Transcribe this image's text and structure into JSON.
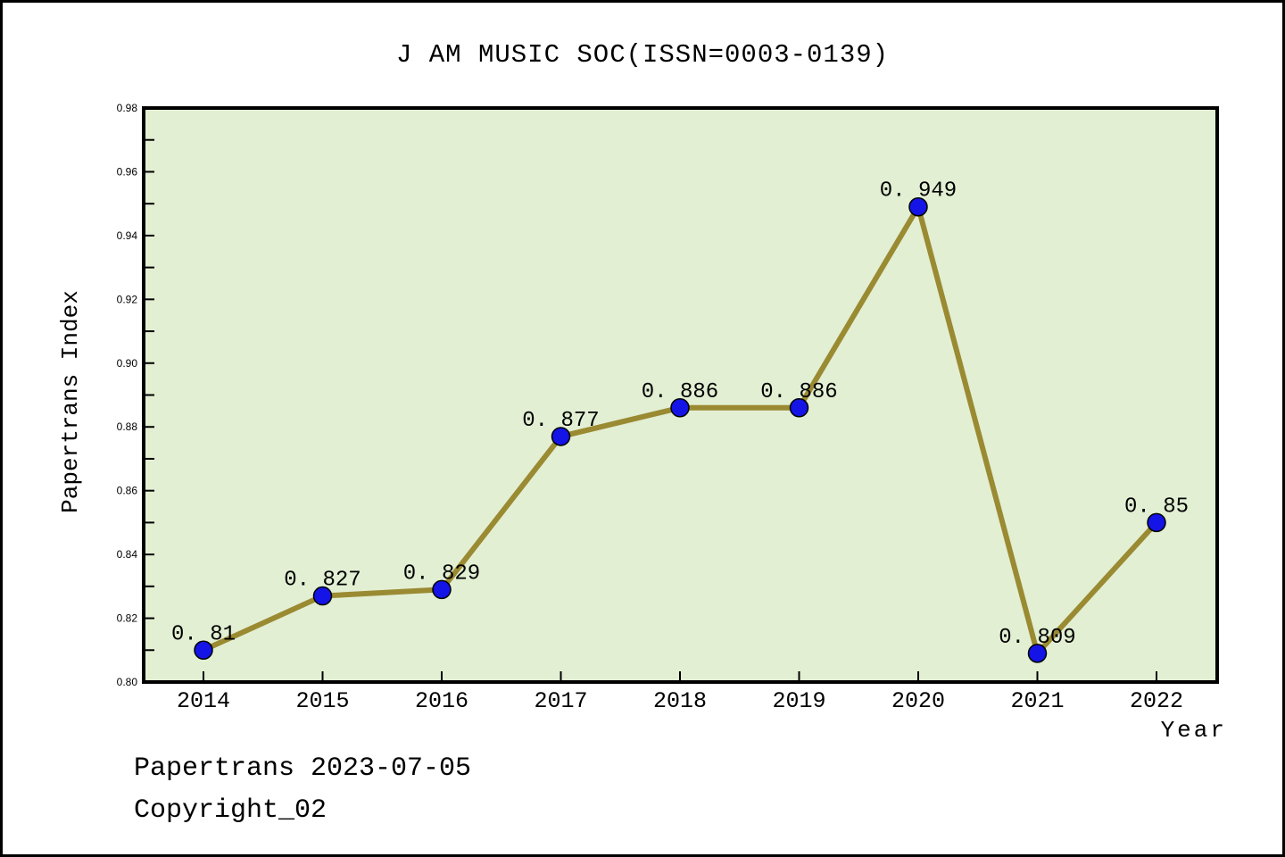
{
  "title": "J AM MUSIC SOC(ISSN=0003-0139)",
  "footer": {
    "line1": "Papertrans 2023-07-05",
    "line2": "Copyright_02"
  },
  "chart_data": {
    "type": "line",
    "title": "J AM MUSIC SOC(ISSN=0003-0139)",
    "xlabel": "Year",
    "ylabel": "Papertrans Index",
    "categories": [
      "2014",
      "2015",
      "2016",
      "2017",
      "2018",
      "2019",
      "2020",
      "2021",
      "2022"
    ],
    "series": [
      {
        "name": "Papertrans Index",
        "values": [
          0.81,
          0.827,
          0.829,
          0.877,
          0.886,
          0.886,
          0.949,
          0.809,
          0.85
        ],
        "point_labels": [
          "0. 81",
          "0. 827",
          "0. 829",
          "0. 877",
          "0. 886",
          "0. 886",
          "0. 949",
          "0. 809",
          "0. 85"
        ]
      }
    ],
    "ylim": [
      0.8,
      0.98
    ],
    "ytick_major_step": 0.02,
    "ytick_minor_step": 0.01,
    "ytick_labels": [
      "0.80",
      "0.82",
      "0.84",
      "0.86",
      "0.88",
      "0.90",
      "0.92",
      "0.94",
      "0.96",
      "0.98"
    ],
    "grid": false,
    "legend_position": "none",
    "colors": {
      "line": "#9A8A32",
      "marker_fill": "#1414E6",
      "marker_edge": "#000000",
      "plot_background": "#E2EFD3",
      "frame": "#000000",
      "text": "#000000"
    }
  }
}
